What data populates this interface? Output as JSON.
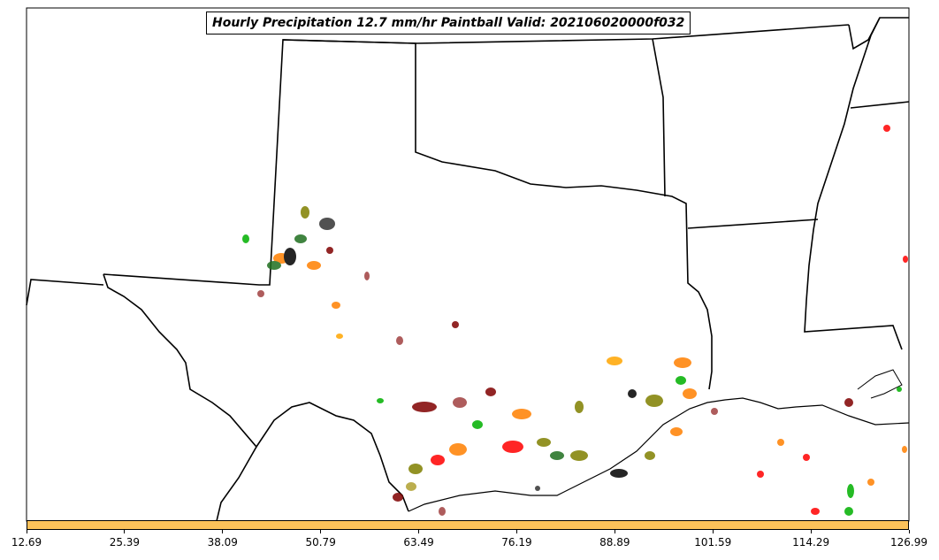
{
  "title": "Hourly Precipitation 12.7 mm/hr Paintball Valid: 202106020000f032",
  "colorbar": {
    "color": "#fcc25a",
    "ticks": [
      "12.69",
      "25.39",
      "38.09",
      "50.79",
      "63.49",
      "76.19",
      "88.89",
      "101.59",
      "114.29",
      "126.99"
    ]
  },
  "member_colors": [
    "#ff0000",
    "#ff7f00",
    "#00b000",
    "#7f0000",
    "#808000",
    "#ffa500",
    "#1f6f1f",
    "#000000",
    "#a04040",
    "#b0a030"
  ]
}
